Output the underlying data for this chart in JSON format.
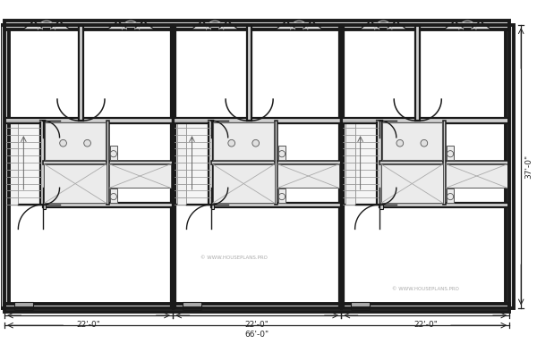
{
  "wall_color": "#1a1a1a",
  "wall_lw": 2.8,
  "inner_wall_lw": 1.6,
  "thin_lw": 0.8,
  "fill_wall": "#d0d0d0",
  "fix_color": "#e8e8e8",
  "fix_ec": "#555555",
  "stair_color": "#cccccc",
  "dim_color": "#222222",
  "watermark": "© WWW.HOUSEPLANS.PRO",
  "dim_label_22": "22'-0\"",
  "dim_label_66": "66'-0\"",
  "dim_label_37": "37'-0\"",
  "figsize": [
    6.0,
    3.94
  ],
  "dpi": 100
}
